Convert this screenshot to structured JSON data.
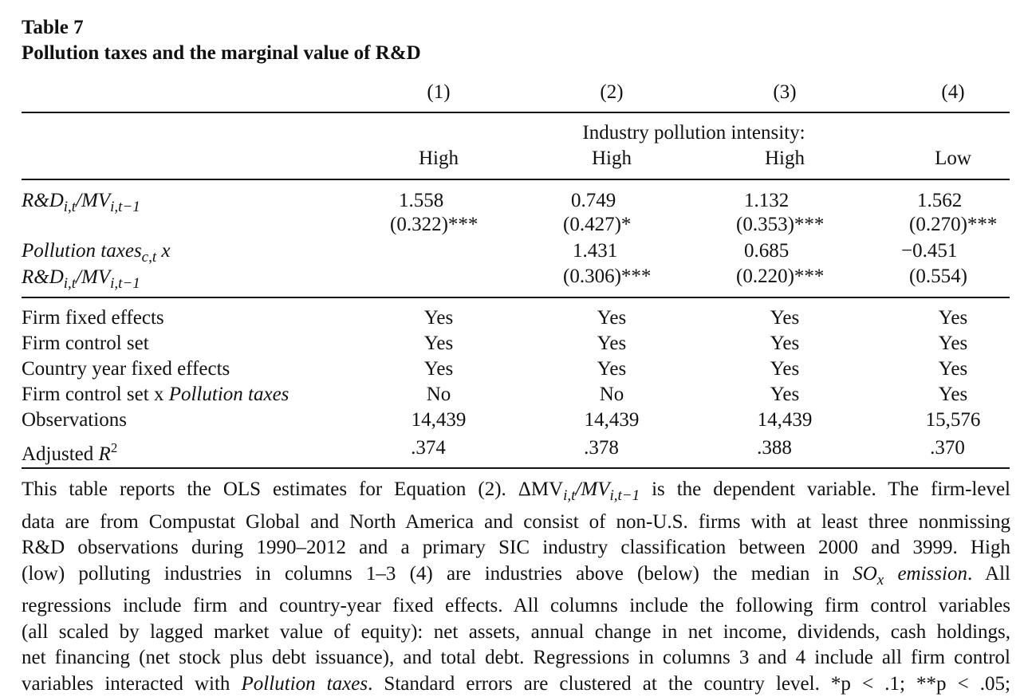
{
  "table": {
    "number": "Table 7",
    "title": "Pollution taxes and the marginal value of R&D",
    "column_headers": [
      "(1)",
      "(2)",
      "(3)",
      "(4)"
    ],
    "group_header": "Industry pollution intensity:",
    "intensity": [
      "High",
      "High",
      "High",
      "Low"
    ],
    "rows": {
      "rd": {
        "label_main": "R&D",
        "label_sub1": "i,t",
        "label_mid": "/MV",
        "label_sub2": "i,t−1",
        "coefs": [
          "1.558",
          "0.749",
          "1.132",
          "1.562"
        ],
        "ses": [
          "(0.322)***",
          "(0.427)*",
          "(0.353)***",
          "(0.270)***"
        ]
      },
      "interaction": {
        "label_line1_main": "Pollution taxes",
        "label_line1_sub": "c,t",
        "label_line1_tail": " x",
        "label_line2_main": "R&D",
        "label_line2_sub1": "i,t",
        "label_line2_mid": "/MV",
        "label_line2_sub2": "i,t−1",
        "coefs": [
          "",
          "1.431",
          "0.685",
          "−0.451"
        ],
        "ses": [
          "",
          "(0.306)***",
          "(0.220)***",
          "(0.554)"
        ]
      }
    },
    "controls": [
      {
        "label": "Firm fixed effects",
        "values": [
          "Yes",
          "Yes",
          "Yes",
          "Yes"
        ]
      },
      {
        "label": "Firm control set",
        "values": [
          "Yes",
          "Yes",
          "Yes",
          "Yes"
        ]
      },
      {
        "label": "Country year fixed effects",
        "values": [
          "Yes",
          "Yes",
          "Yes",
          "Yes"
        ]
      },
      {
        "label_plain": "Firm control set x ",
        "label_italic": "Pollution taxes",
        "values": [
          "No",
          "No",
          "Yes",
          "Yes"
        ]
      },
      {
        "label": "Observations",
        "values": [
          "14,439",
          "14,439",
          "14,439",
          "15,576"
        ]
      },
      {
        "label_plain": "Adjusted ",
        "label_italic": "R",
        "label_sup": "2",
        "values": [
          ".374",
          ".378",
          ".388",
          ".370"
        ]
      }
    ]
  },
  "note": {
    "line1_a": "This table reports the OLS estimates for Equation (2). ΔMV",
    "line1_sub1": "i,t",
    "line1_b": "/MV",
    "line1_sub2": "i,t−1",
    "line1_c": " is the dependent variable. The firm-level",
    "line2": "data are from Compustat Global and North America and consist of non-U.S. firms with at least three nonmissing",
    "line3": "R&D observations during 1990–2012 and a primary SIC industry classification between 2000 and 3999. High",
    "line4_a": "(low) polluting industries in columns 1–3 (4) are industries above (below) the median in ",
    "line4_it1": "SO",
    "line4_sub": "x",
    "line4_it2": " emission",
    "line4_b": ". All",
    "line5": "regressions include firm and country-year fixed effects. All columns include the following firm control variables",
    "line6": "(all scaled by lagged market value of equity): net assets, annual change in net income, dividends, cash holdings,",
    "line7": "net financing (net stock plus debt issuance), and total debt. Regressions in columns 3 and 4 include all firm control",
    "line8_a": "variables interacted with ",
    "line8_it": "Pollution taxes",
    "line8_b": ". Standard errors are clustered at the country level. *p < .1; **p < .05;"
  }
}
